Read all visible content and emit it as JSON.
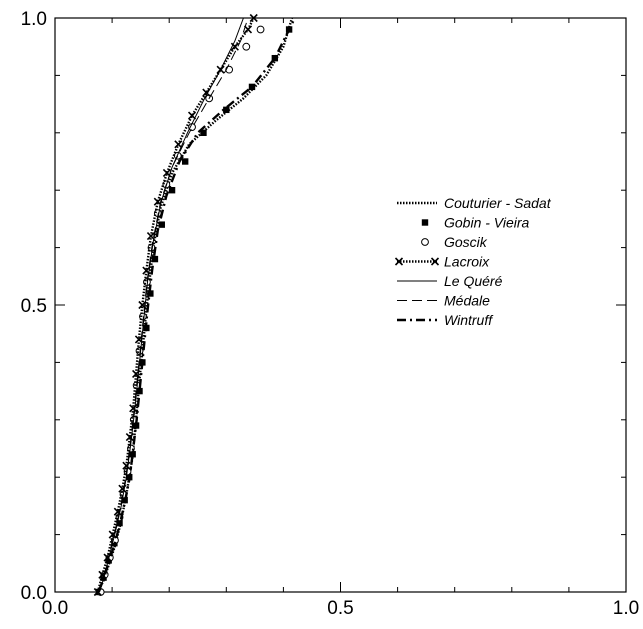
{
  "chart_data": {
    "type": "line",
    "title": "",
    "xlabel": "",
    "ylabel": "",
    "xlim": [
      0.0,
      1.0
    ],
    "ylim": [
      0.0,
      1.0
    ],
    "x_ticks": [
      "0.0",
      "0.5",
      "1.0"
    ],
    "y_ticks": [
      "0.0",
      "0.5",
      "1.0"
    ],
    "grid": false,
    "legend_position": "middle-right",
    "series": [
      {
        "name": "Couturier - Sadat",
        "style": "dotted",
        "marker": "none",
        "points": [
          [
            0.075,
            0.0
          ],
          [
            0.085,
            0.02
          ],
          [
            0.095,
            0.05
          ],
          [
            0.105,
            0.08
          ],
          [
            0.115,
            0.12
          ],
          [
            0.125,
            0.17
          ],
          [
            0.135,
            0.23
          ],
          [
            0.142,
            0.3
          ],
          [
            0.148,
            0.37
          ],
          [
            0.155,
            0.44
          ],
          [
            0.163,
            0.52
          ],
          [
            0.172,
            0.6
          ],
          [
            0.185,
            0.67
          ],
          [
            0.205,
            0.73
          ],
          [
            0.235,
            0.78
          ],
          [
            0.28,
            0.82
          ],
          [
            0.33,
            0.86
          ],
          [
            0.37,
            0.9
          ],
          [
            0.4,
            0.95
          ],
          [
            0.415,
            1.0
          ]
        ]
      },
      {
        "name": "Gobin - Vieira",
        "style": "none",
        "marker": "square",
        "points": [
          [
            0.077,
            0.0
          ],
          [
            0.085,
            0.025
          ],
          [
            0.094,
            0.055
          ],
          [
            0.104,
            0.085
          ],
          [
            0.113,
            0.12
          ],
          [
            0.122,
            0.16
          ],
          [
            0.13,
            0.2
          ],
          [
            0.136,
            0.24
          ],
          [
            0.142,
            0.29
          ],
          [
            0.148,
            0.35
          ],
          [
            0.153,
            0.4
          ],
          [
            0.16,
            0.46
          ],
          [
            0.167,
            0.52
          ],
          [
            0.175,
            0.58
          ],
          [
            0.187,
            0.64
          ],
          [
            0.205,
            0.7
          ],
          [
            0.228,
            0.75
          ],
          [
            0.26,
            0.8
          ],
          [
            0.3,
            0.84
          ],
          [
            0.345,
            0.88
          ],
          [
            0.385,
            0.93
          ],
          [
            0.41,
            0.98
          ]
        ]
      },
      {
        "name": "Goscik",
        "style": "none",
        "marker": "circle",
        "points": [
          [
            0.08,
            0.0
          ],
          [
            0.087,
            0.03
          ],
          [
            0.096,
            0.06
          ],
          [
            0.105,
            0.09
          ],
          [
            0.113,
            0.13
          ],
          [
            0.12,
            0.17
          ],
          [
            0.127,
            0.21
          ],
          [
            0.133,
            0.25
          ],
          [
            0.138,
            0.3
          ],
          [
            0.143,
            0.36
          ],
          [
            0.148,
            0.42
          ],
          [
            0.154,
            0.48
          ],
          [
            0.161,
            0.54
          ],
          [
            0.169,
            0.6
          ],
          [
            0.18,
            0.66
          ],
          [
            0.195,
            0.71
          ],
          [
            0.215,
            0.76
          ],
          [
            0.24,
            0.81
          ],
          [
            0.27,
            0.86
          ],
          [
            0.305,
            0.91
          ],
          [
            0.335,
            0.95
          ],
          [
            0.36,
            0.98
          ]
        ]
      },
      {
        "name": "Lacroix",
        "style": "dotted",
        "marker": "cross",
        "points": [
          [
            0.075,
            0.0
          ],
          [
            0.083,
            0.03
          ],
          [
            0.092,
            0.06
          ],
          [
            0.101,
            0.1
          ],
          [
            0.11,
            0.14
          ],
          [
            0.118,
            0.18
          ],
          [
            0.125,
            0.22
          ],
          [
            0.131,
            0.27
          ],
          [
            0.137,
            0.32
          ],
          [
            0.142,
            0.38
          ],
          [
            0.147,
            0.44
          ],
          [
            0.153,
            0.5
          ],
          [
            0.16,
            0.56
          ],
          [
            0.168,
            0.62
          ],
          [
            0.18,
            0.68
          ],
          [
            0.196,
            0.73
          ],
          [
            0.216,
            0.78
          ],
          [
            0.24,
            0.83
          ],
          [
            0.265,
            0.87
          ],
          [
            0.29,
            0.91
          ],
          [
            0.315,
            0.95
          ],
          [
            0.338,
            0.98
          ],
          [
            0.348,
            1.0
          ]
        ]
      },
      {
        "name": "Le Quéré",
        "style": "solid",
        "marker": "none",
        "points": [
          [
            0.078,
            0.0
          ],
          [
            0.087,
            0.03
          ],
          [
            0.097,
            0.07
          ],
          [
            0.107,
            0.11
          ],
          [
            0.116,
            0.15
          ],
          [
            0.125,
            0.2
          ],
          [
            0.133,
            0.26
          ],
          [
            0.14,
            0.32
          ],
          [
            0.147,
            0.39
          ],
          [
            0.154,
            0.46
          ],
          [
            0.162,
            0.54
          ],
          [
            0.172,
            0.61
          ],
          [
            0.186,
            0.68
          ],
          [
            0.205,
            0.74
          ],
          [
            0.232,
            0.8
          ],
          [
            0.262,
            0.86
          ],
          [
            0.29,
            0.91
          ],
          [
            0.315,
            0.96
          ],
          [
            0.33,
            1.0
          ]
        ]
      },
      {
        "name": "Médale",
        "style": "dashed",
        "marker": "none",
        "points": [
          [
            0.076,
            0.0
          ],
          [
            0.086,
            0.03
          ],
          [
            0.096,
            0.07
          ],
          [
            0.106,
            0.11
          ],
          [
            0.115,
            0.15
          ],
          [
            0.124,
            0.2
          ],
          [
            0.132,
            0.26
          ],
          [
            0.139,
            0.32
          ],
          [
            0.146,
            0.39
          ],
          [
            0.153,
            0.46
          ],
          [
            0.161,
            0.54
          ],
          [
            0.171,
            0.61
          ],
          [
            0.185,
            0.68
          ],
          [
            0.205,
            0.74
          ],
          [
            0.235,
            0.8
          ],
          [
            0.27,
            0.86
          ],
          [
            0.3,
            0.91
          ],
          [
            0.325,
            0.96
          ],
          [
            0.338,
            1.0
          ]
        ]
      },
      {
        "name": "Wintruff",
        "style": "dash-dot",
        "marker": "none",
        "points": [
          [
            0.076,
            0.0
          ],
          [
            0.086,
            0.025
          ],
          [
            0.095,
            0.055
          ],
          [
            0.105,
            0.085
          ],
          [
            0.114,
            0.12
          ],
          [
            0.123,
            0.16
          ],
          [
            0.131,
            0.2
          ],
          [
            0.137,
            0.25
          ],
          [
            0.143,
            0.3
          ],
          [
            0.149,
            0.36
          ],
          [
            0.155,
            0.42
          ],
          [
            0.162,
            0.49
          ],
          [
            0.17,
            0.56
          ],
          [
            0.18,
            0.63
          ],
          [
            0.195,
            0.69
          ],
          [
            0.218,
            0.75
          ],
          [
            0.25,
            0.8
          ],
          [
            0.295,
            0.84
          ],
          [
            0.345,
            0.88
          ],
          [
            0.385,
            0.93
          ],
          [
            0.41,
            0.98
          ],
          [
            0.42,
            1.0
          ]
        ]
      }
    ]
  }
}
